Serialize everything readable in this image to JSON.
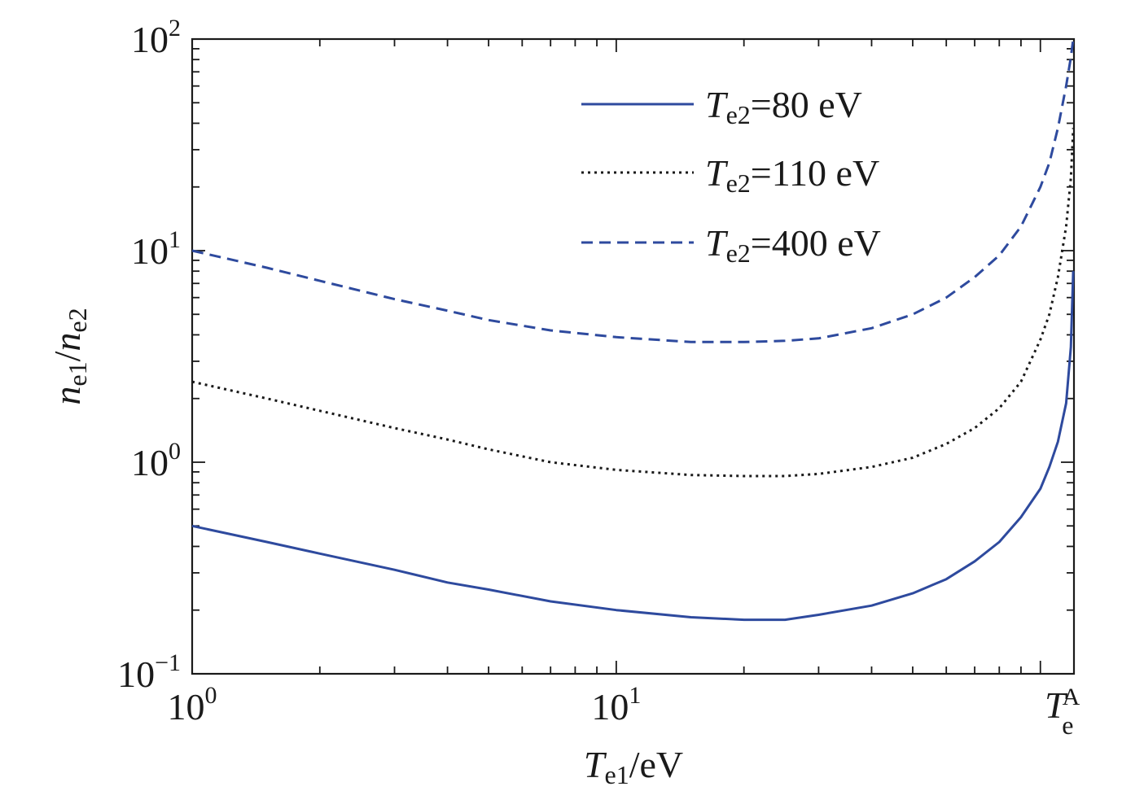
{
  "chart_data": {
    "type": "line",
    "xscale": "log",
    "yscale": "log",
    "xlim": [
      1,
      120
    ],
    "ylim": [
      0.1,
      100
    ],
    "xlabel": {
      "main": "T",
      "sub": "e1",
      "rest": "/eV"
    },
    "ylabel": {
      "n1": "n",
      "sub1": "e1",
      "slash": "/",
      "n2": "n",
      "sub2": "e2"
    },
    "x_ticks": [
      {
        "value": 1,
        "base": "10",
        "exp": "0"
      },
      {
        "value": 10,
        "base": "10",
        "exp": "1"
      }
    ],
    "x_end_label": {
      "main": "T",
      "sub": "e",
      "sup": "A"
    },
    "y_ticks": [
      {
        "value": 0.1,
        "base": "10",
        "exp": "−1"
      },
      {
        "value": 1,
        "base": "10",
        "exp": "0"
      },
      {
        "value": 10,
        "base": "10",
        "exp": "1"
      },
      {
        "value": 100,
        "base": "10",
        "exp": "2"
      }
    ],
    "legend_position": "top-right",
    "series": [
      {
        "name_main": "T",
        "name_sub": "e2",
        "name_rest": "=80 eV",
        "color": "#2e4a9e",
        "dash": "solid",
        "x": [
          1,
          1.5,
          2,
          3,
          4,
          5,
          7,
          10,
          15,
          20,
          25,
          30,
          40,
          50,
          60,
          70,
          80,
          90,
          100,
          105,
          110,
          115,
          118,
          119.5
        ],
        "y": [
          0.5,
          0.42,
          0.37,
          0.31,
          0.27,
          0.25,
          0.22,
          0.2,
          0.185,
          0.18,
          0.18,
          0.19,
          0.21,
          0.24,
          0.28,
          0.34,
          0.42,
          0.55,
          0.75,
          0.95,
          1.25,
          1.9,
          3.5,
          8
        ]
      },
      {
        "name_main": "T",
        "name_sub": "e2",
        "name_rest": "=110 eV",
        "color": "#1a1a1a",
        "dash": "dotted",
        "x": [
          1,
          1.5,
          2,
          3,
          4,
          5,
          7,
          10,
          15,
          20,
          25,
          30,
          40,
          50,
          60,
          70,
          80,
          90,
          100,
          105,
          110,
          115,
          118,
          119.5
        ],
        "y": [
          2.4,
          2.0,
          1.75,
          1.45,
          1.28,
          1.15,
          1.0,
          0.92,
          0.87,
          0.86,
          0.86,
          0.88,
          0.95,
          1.05,
          1.22,
          1.45,
          1.8,
          2.4,
          3.8,
          5.0,
          7.5,
          13,
          22,
          38
        ]
      },
      {
        "name_main": "T",
        "name_sub": "e2",
        "name_rest": "=400 eV",
        "color": "#2e4a9e",
        "dash": "dashed",
        "x": [
          1,
          1.5,
          2,
          3,
          4,
          5,
          7,
          10,
          15,
          20,
          25,
          30,
          40,
          50,
          60,
          70,
          80,
          90,
          100,
          105,
          110,
          115,
          118,
          119.5
        ],
        "y": [
          10,
          8.3,
          7.2,
          5.9,
          5.2,
          4.7,
          4.2,
          3.9,
          3.7,
          3.7,
          3.75,
          3.85,
          4.3,
          5.0,
          6.0,
          7.5,
          9.5,
          13,
          20,
          26,
          38,
          60,
          82,
          100
        ]
      }
    ]
  }
}
